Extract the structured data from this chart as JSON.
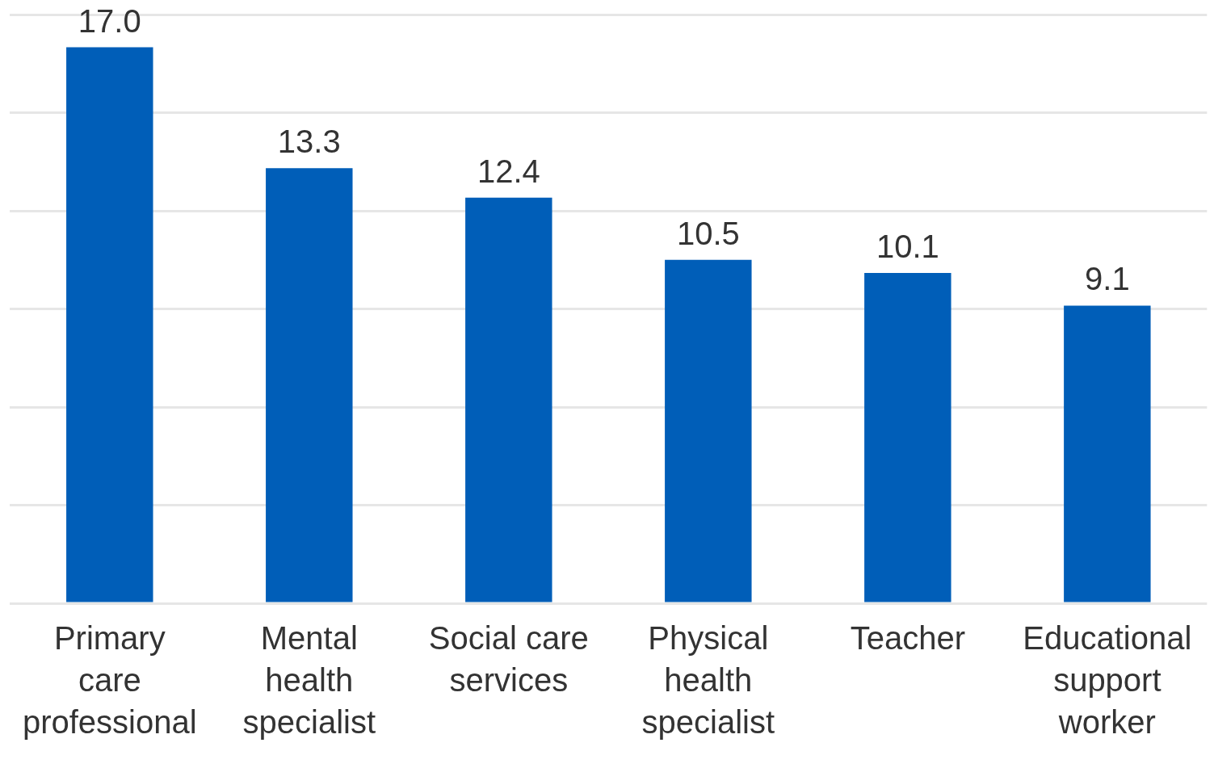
{
  "chart_data": {
    "type": "bar",
    "categories": [
      "Primary care professional",
      "Mental health specialist",
      "Social care services",
      "Physical health specialist",
      "Teacher",
      "Educational support worker"
    ],
    "values": [
      17.0,
      13.3,
      12.4,
      10.5,
      10.1,
      9.1
    ],
    "value_labels": [
      "17.0",
      "13.3",
      "12.4",
      "10.5",
      "10.1",
      "9.1"
    ],
    "color": "#005eb8",
    "ylim": [
      0,
      18
    ],
    "yticks": [
      {
        "value": 0,
        "label": null
      },
      {
        "value": 3,
        "label": null
      },
      {
        "value": 6,
        "label": null
      },
      {
        "value": 9,
        "label": null
      },
      {
        "value": 12,
        "label": null
      },
      {
        "value": 15,
        "label": null
      },
      {
        "value": 18,
        "label": null
      }
    ],
    "grid": "y",
    "tick_labels": "x",
    "legend": false
  }
}
